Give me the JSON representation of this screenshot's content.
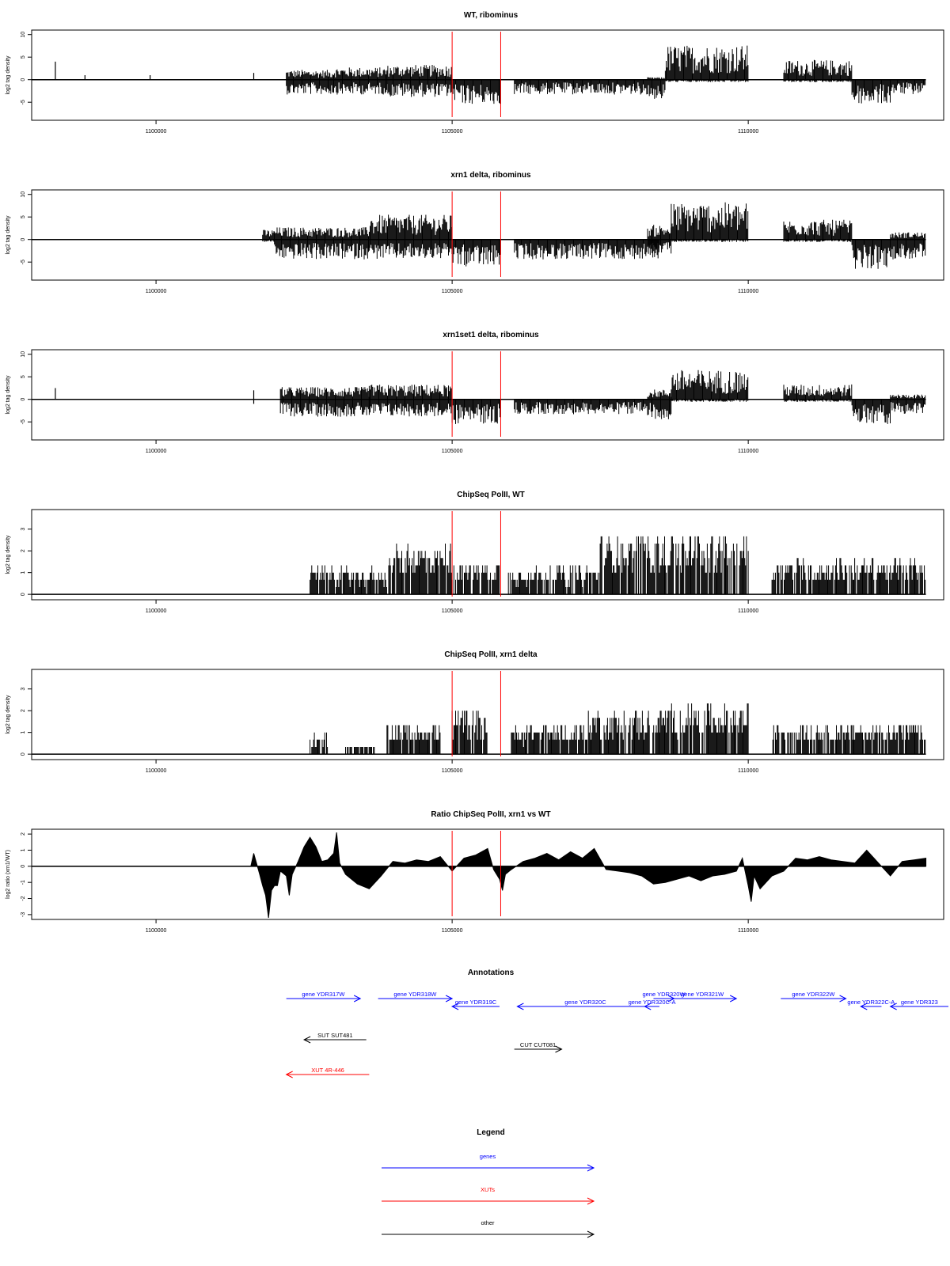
{
  "xaxis": {
    "ticks": [
      1100000,
      1105000,
      1110000
    ],
    "tick_labels": [
      "1100000",
      "1105000",
      "1110000"
    ],
    "range": [
      1097900,
      1113300
    ]
  },
  "markers": {
    "color": "#ff0000",
    "positions": [
      1105000,
      1105820
    ]
  },
  "colors": {
    "data": "#000000",
    "genes": "#0000ff",
    "xuts": "#ff0000",
    "other": "#000000",
    "marker": "#ff0000"
  },
  "chart_data": [
    {
      "type": "bar",
      "title": "WT, ribominus",
      "ylabel": "log2 tag density",
      "ylim": [
        -9,
        11
      ],
      "yticks": [
        -5,
        0,
        5,
        10
      ],
      "ytick_labels": [
        "-5",
        "0",
        "5",
        "10"
      ],
      "segments": [
        {
          "x": [
            1098300,
            1098330
          ],
          "pos": 4,
          "neg": 0
        },
        {
          "x": [
            1098800,
            1098830
          ],
          "pos": 1,
          "neg": 0
        },
        {
          "x": [
            1099900,
            1099930
          ],
          "pos": 1,
          "neg": 0
        },
        {
          "x": [
            1101650,
            1101690
          ],
          "pos": 1.5,
          "neg": 0
        },
        {
          "x": [
            1102200,
            1103000
          ],
          "pos": 2,
          "neg": -3
        },
        {
          "x": [
            1103000,
            1103900
          ],
          "pos": 2.5,
          "neg": -3
        },
        {
          "x": [
            1103900,
            1105000
          ],
          "pos": 3,
          "neg": -3.5
        },
        {
          "x": [
            1105000,
            1105820
          ],
          "pos": 0,
          "neg": -5
        },
        {
          "x": [
            1106050,
            1108300
          ],
          "pos": 0,
          "neg": -3
        },
        {
          "x": [
            1108300,
            1108600
          ],
          "pos": 0.5,
          "neg": -4
        },
        {
          "x": [
            1108600,
            1110000
          ],
          "pos": 7,
          "neg": -0.5
        },
        {
          "x": [
            1110600,
            1111750
          ],
          "pos": 4,
          "neg": -0.5
        },
        {
          "x": [
            1111750,
            1112400
          ],
          "pos": 0,
          "neg": -5
        },
        {
          "x": [
            1112400,
            1113000
          ],
          "pos": 0,
          "neg": -3
        }
      ]
    },
    {
      "type": "bar",
      "title": "xrn1 delta, ribominus",
      "ylabel": "log2 tag density",
      "ylim": [
        -9,
        11
      ],
      "yticks": [
        -5,
        0,
        5,
        10
      ],
      "ytick_labels": [
        "-5",
        "0",
        "5",
        "10"
      ],
      "segments": [
        {
          "x": [
            1101800,
            1102000
          ],
          "pos": 2,
          "neg": -0.5
        },
        {
          "x": [
            1102000,
            1103600
          ],
          "pos": 2.5,
          "neg": -4
        },
        {
          "x": [
            1103600,
            1105000
          ],
          "pos": 5,
          "neg": -4
        },
        {
          "x": [
            1105000,
            1105820
          ],
          "pos": 0,
          "neg": -5.5
        },
        {
          "x": [
            1106050,
            1108500
          ],
          "pos": 0,
          "neg": -4
        },
        {
          "x": [
            1108300,
            1108700
          ],
          "pos": 3,
          "neg": -3
        },
        {
          "x": [
            1108700,
            1110000
          ],
          "pos": 7.5,
          "neg": -0.5
        },
        {
          "x": [
            1110600,
            1111750
          ],
          "pos": 4,
          "neg": -0.5
        },
        {
          "x": [
            1111750,
            1112400
          ],
          "pos": 0,
          "neg": -6
        },
        {
          "x": [
            1112400,
            1113000
          ],
          "pos": 1.5,
          "neg": -4
        }
      ]
    },
    {
      "type": "bar",
      "title": "xrn1set1 delta, ribominus",
      "ylabel": "log2 tag density",
      "ylim": [
        -9,
        11
      ],
      "yticks": [
        -5,
        0,
        5,
        10
      ],
      "ytick_labels": [
        "-5",
        "0",
        "5",
        "10"
      ],
      "segments": [
        {
          "x": [
            1098300,
            1098330
          ],
          "pos": 2.5,
          "neg": 0
        },
        {
          "x": [
            1101650,
            1101690
          ],
          "pos": 2,
          "neg": -1
        },
        {
          "x": [
            1102100,
            1103600
          ],
          "pos": 2.5,
          "neg": -3.5
        },
        {
          "x": [
            1103600,
            1105000
          ],
          "pos": 3,
          "neg": -3.5
        },
        {
          "x": [
            1105000,
            1105820
          ],
          "pos": 0,
          "neg": -5
        },
        {
          "x": [
            1106050,
            1108300
          ],
          "pos": 0,
          "neg": -3
        },
        {
          "x": [
            1108300,
            1108700
          ],
          "pos": 2,
          "neg": -4
        },
        {
          "x": [
            1108700,
            1110000
          ],
          "pos": 6,
          "neg": -0.5
        },
        {
          "x": [
            1110600,
            1111750
          ],
          "pos": 3,
          "neg": -0.5
        },
        {
          "x": [
            1111750,
            1112400
          ],
          "pos": 0,
          "neg": -5
        },
        {
          "x": [
            1112400,
            1113000
          ],
          "pos": 1,
          "neg": -3
        }
      ]
    },
    {
      "type": "bar",
      "title": "ChipSeq PolII, WT",
      "ylabel": "log2 tag density",
      "ylim": [
        -0.25,
        3.9
      ],
      "yticks": [
        0,
        1,
        2,
        3
      ],
      "ytick_labels": [
        "0",
        "1",
        "2",
        "3"
      ],
      "segments": [
        {
          "x": [
            1102600,
            1103900
          ],
          "pos": 1,
          "neg": 0
        },
        {
          "x": [
            1103900,
            1105000
          ],
          "pos": 1.8,
          "neg": 0
        },
        {
          "x": [
            1105000,
            1105800
          ],
          "pos": 1.2,
          "neg": 0
        },
        {
          "x": [
            1105950,
            1107500
          ],
          "pos": 1,
          "neg": 0
        },
        {
          "x": [
            1107500,
            1110000
          ],
          "pos": 2.2,
          "neg": 0
        },
        {
          "x": [
            1110400,
            1113000
          ],
          "pos": 1.3,
          "neg": 0
        }
      ]
    },
    {
      "type": "bar",
      "title": "ChipSeq PolII, xrn1 delta",
      "ylabel": "log2 tag density",
      "ylim": [
        -0.25,
        3.9
      ],
      "yticks": [
        0,
        1,
        2,
        3
      ],
      "ytick_labels": [
        "0",
        "1",
        "2",
        "3"
      ],
      "segments": [
        {
          "x": [
            1102600,
            1102900
          ],
          "pos": 0.8,
          "neg": 0
        },
        {
          "x": [
            1103200,
            1103700
          ],
          "pos": 0.4,
          "neg": 0
        },
        {
          "x": [
            1103900,
            1104800
          ],
          "pos": 1.2,
          "neg": 0
        },
        {
          "x": [
            1105000,
            1105600
          ],
          "pos": 1.6,
          "neg": 0
        },
        {
          "x": [
            1106000,
            1107300
          ],
          "pos": 1.1,
          "neg": 0
        },
        {
          "x": [
            1107300,
            1108500
          ],
          "pos": 1.6,
          "neg": 0
        },
        {
          "x": [
            1108500,
            1110000
          ],
          "pos": 1.8,
          "neg": 0
        },
        {
          "x": [
            1110400,
            1113000
          ],
          "pos": 1.2,
          "neg": 0
        }
      ]
    },
    {
      "type": "area",
      "title": "Ratio ChipSeq PolII, xrn1 vs WT",
      "ylabel": "log2 ratio (xrn1/WT)",
      "ylim": [
        -3.3,
        2.3
      ],
      "yticks": [
        -3,
        -2,
        -1,
        0,
        1,
        2
      ],
      "ytick_labels": [
        "-3",
        "-2",
        "-1",
        "0",
        "1",
        "2"
      ],
      "x": [
        1097900,
        1101600,
        1101650,
        1101750,
        1101800,
        1101850,
        1101900,
        1101950,
        1102000,
        1102050,
        1102100,
        1102200,
        1102250,
        1102300,
        1102400,
        1102500,
        1102600,
        1102700,
        1102800,
        1102900,
        1103000,
        1103050,
        1103100,
        1103200,
        1103400,
        1103600,
        1103800,
        1104000,
        1104200,
        1104400,
        1104600,
        1104800,
        1105000,
        1105200,
        1105400,
        1105600,
        1105700,
        1105800,
        1105850,
        1105900,
        1106000,
        1106200,
        1106400,
        1106600,
        1106800,
        1107000,
        1107200,
        1107400,
        1107600,
        1107800,
        1108000,
        1108200,
        1108400,
        1108600,
        1108800,
        1109000,
        1109200,
        1109400,
        1109600,
        1109800,
        1109900,
        1110000,
        1110050,
        1110100,
        1110200,
        1110300,
        1110400,
        1110600,
        1110800,
        1111000,
        1111200,
        1111400,
        1111600,
        1111800,
        1112000,
        1112200,
        1112400,
        1112600,
        1112800,
        1113000
      ],
      "y": [
        0,
        0,
        0.8,
        -0.5,
        -1.2,
        -1.8,
        -3.2,
        -1.5,
        -1.2,
        -1.2,
        -0.3,
        -0.6,
        -1.8,
        -0.5,
        0.3,
        1.2,
        1.8,
        1.2,
        0.3,
        0.4,
        0.8,
        2.1,
        0.2,
        -0.5,
        -1.1,
        -1.4,
        -0.6,
        0.3,
        0.2,
        0.4,
        0.3,
        0.6,
        -0.3,
        0.5,
        0.7,
        1.1,
        -0.2,
        -0.8,
        -1.5,
        -0.5,
        -0.2,
        0.3,
        0.5,
        0.8,
        0.4,
        0.9,
        0.5,
        1.1,
        -0.2,
        -0.3,
        -0.4,
        -0.6,
        -1.1,
        -1.0,
        -0.8,
        -0.6,
        -0.9,
        -0.6,
        -0.5,
        -0.3,
        0.5,
        -1.2,
        -2.2,
        -0.6,
        -1.4,
        -1.0,
        -0.6,
        -0.3,
        0.5,
        0.4,
        0.6,
        0.4,
        0.3,
        0.2,
        1.0,
        0.2,
        -0.6,
        0.3,
        0.4,
        0.5
      ]
    }
  ],
  "annotations": {
    "title": "Annotations",
    "items": [
      {
        "label": "gene YDR317W",
        "start": 1102200,
        "end": 1103450,
        "row": 0,
        "kind": "genes",
        "dir": "right"
      },
      {
        "label": "gene YDR318W",
        "start": 1103750,
        "end": 1105000,
        "row": 0,
        "kind": "genes",
        "dir": "right"
      },
      {
        "label": "gene YDR319C",
        "start": 1105000,
        "end": 1105800,
        "row": 1,
        "kind": "genes",
        "dir": "left"
      },
      {
        "label": "gene YDR320C",
        "start": 1106100,
        "end": 1108400,
        "row": 1,
        "kind": "genes",
        "dir": "left"
      },
      {
        "label": "gene YDR320W",
        "start": 1108400,
        "end": 1108750,
        "row": 0,
        "kind": "genes",
        "dir": "right"
      },
      {
        "label": "gene YDR320C-A",
        "start": 1108250,
        "end": 1108500,
        "row": 1,
        "kind": "genes",
        "dir": "left"
      },
      {
        "label": "gene YDR321W",
        "start": 1108650,
        "end": 1109800,
        "row": 0,
        "kind": "genes",
        "dir": "right"
      },
      {
        "label": "gene YDR322W",
        "start": 1110550,
        "end": 1111650,
        "row": 0,
        "kind": "genes",
        "dir": "right"
      },
      {
        "label": "gene YDR322C-A",
        "start": 1111900,
        "end": 1112250,
        "row": 1,
        "kind": "genes",
        "dir": "left"
      },
      {
        "label": "gene YDR323",
        "start": 1112400,
        "end": 1113700,
        "row": 1,
        "kind": "genes",
        "dir": "left"
      },
      {
        "label": "SUT SUT481",
        "start": 1102500,
        "end": 1103550,
        "row": 2,
        "kind": "other",
        "dir": "left"
      },
      {
        "label": "CUT CUT081",
        "start": 1106050,
        "end": 1106850,
        "row": 3,
        "kind": "other",
        "dir": "right"
      },
      {
        "label": "XUT 4R-446",
        "start": 1102200,
        "end": 1103600,
        "row": 4,
        "kind": "xuts",
        "dir": "left"
      }
    ]
  },
  "legend": {
    "title": "Legend",
    "items": [
      {
        "label": "genes",
        "kind": "genes"
      },
      {
        "label": "XUTs",
        "kind": "xuts"
      },
      {
        "label": "other",
        "kind": "other"
      }
    ]
  }
}
